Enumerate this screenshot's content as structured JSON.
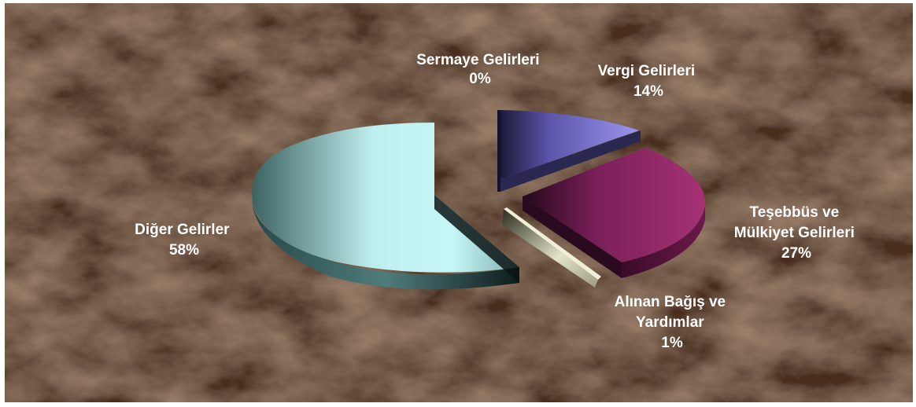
{
  "chart_data": {
    "type": "pie",
    "title": "",
    "slices": [
      {
        "name": "Sermaye Gelirleri",
        "label_lines": [
          "Sermaye Gelirleri"
        ],
        "percent_label": "0%",
        "value": 0,
        "color": "#8c86d8"
      },
      {
        "name": "Vergi Gelirleri",
        "label_lines": [
          "Vergi Gelirleri"
        ],
        "percent_label": "14%",
        "value": 14,
        "color": "#8c86e6"
      },
      {
        "name": "Teşebbüs ve Mülkiyet Gelirleri",
        "label_lines": [
          "Teşebbüs ve",
          "Mülkiyet Gelirleri"
        ],
        "percent_label": "27%",
        "value": 27,
        "color": "#9c2a6e"
      },
      {
        "name": "Alınan Bağış ve Yardımlar",
        "label_lines": [
          "Alınan Bağış ve",
          "Yardımlar"
        ],
        "percent_label": "1%",
        "value": 1,
        "color": "#dcdcc0"
      },
      {
        "name": "Diğer Gelirler",
        "label_lines": [
          "Diğer Gelirler"
        ],
        "percent_label": "58%",
        "value": 58,
        "color": "#c2f4f4"
      }
    ],
    "legend": "none",
    "data_labels": "outside, category and percent",
    "style": "3D exploded pie on brown marble background"
  }
}
